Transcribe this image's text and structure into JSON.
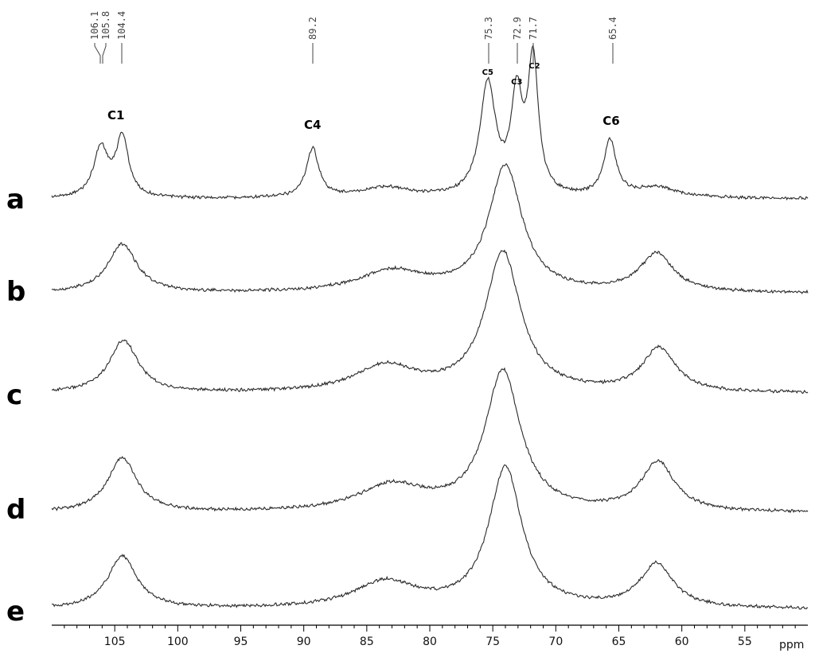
{
  "chart_data": {
    "type": "line",
    "x_unit": "ppm",
    "xlim": [
      110,
      50
    ],
    "x_ticks": [
      105,
      100,
      95,
      90,
      85,
      80,
      75,
      70,
      65,
      60,
      55
    ],
    "series": [
      {
        "name": "a",
        "peaks": [
          {
            "x": 106.1,
            "height": 0.14,
            "width": 0.7
          },
          {
            "x": 104.4,
            "height": 0.17,
            "width": 0.6
          },
          {
            "x": 89.3,
            "height": 0.14,
            "width": 0.6
          },
          {
            "x": 83.5,
            "height": 0.03,
            "width": 2.5
          },
          {
            "x": 75.4,
            "height": 0.32,
            "width": 0.75
          },
          {
            "x": 73.1,
            "height": 0.27,
            "width": 0.55
          },
          {
            "x": 71.8,
            "height": 0.38,
            "width": 0.5
          },
          {
            "x": 65.7,
            "height": 0.16,
            "width": 0.6
          },
          {
            "x": 62.0,
            "height": 0.03,
            "width": 2.0
          }
        ]
      },
      {
        "name": "b",
        "peaks": [
          {
            "x": 104.4,
            "height": 0.14,
            "width": 1.4
          },
          {
            "x": 83.0,
            "height": 0.06,
            "width": 3.2
          },
          {
            "x": 74.0,
            "height": 0.36,
            "width": 1.6
          },
          {
            "x": 62.0,
            "height": 0.11,
            "width": 1.6
          }
        ]
      },
      {
        "name": "c",
        "peaks": [
          {
            "x": 104.3,
            "height": 0.15,
            "width": 1.4
          },
          {
            "x": 83.5,
            "height": 0.075,
            "width": 3.0
          },
          {
            "x": 74.2,
            "height": 0.4,
            "width": 1.7
          },
          {
            "x": 61.8,
            "height": 0.125,
            "width": 1.6
          }
        ]
      },
      {
        "name": "d",
        "peaks": [
          {
            "x": 104.4,
            "height": 0.155,
            "width": 1.4
          },
          {
            "x": 83.0,
            "height": 0.075,
            "width": 3.2
          },
          {
            "x": 74.2,
            "height": 0.4,
            "width": 1.7
          },
          {
            "x": 61.9,
            "height": 0.14,
            "width": 1.6
          }
        ]
      },
      {
        "name": "e",
        "peaks": [
          {
            "x": 104.4,
            "height": 0.15,
            "width": 1.4
          },
          {
            "x": 83.5,
            "height": 0.075,
            "width": 3.0
          },
          {
            "x": 74.0,
            "height": 0.4,
            "width": 1.6
          },
          {
            "x": 62.0,
            "height": 0.125,
            "width": 1.6
          }
        ]
      }
    ],
    "carbon_labels": [
      {
        "text": "C1",
        "x": 104.9,
        "trace": "a",
        "size": "large"
      },
      {
        "text": "C4",
        "x": 89.3,
        "trace": "a",
        "size": "large"
      },
      {
        "text": "C6",
        "x": 65.6,
        "trace": "a",
        "size": "large"
      },
      {
        "text": "C5",
        "x": 75.4,
        "trace": "a",
        "size": "small"
      },
      {
        "text": "C3",
        "x": 73.1,
        "trace": "a",
        "size": "small"
      },
      {
        "text": "C2",
        "x": 71.7,
        "trace": "a",
        "size": "small"
      }
    ],
    "peak_picks": [
      "106.1",
      "105.8",
      "104.4",
      "89.2",
      "75.3",
      "72.9",
      "71.7",
      "65.4"
    ],
    "grid": false
  }
}
